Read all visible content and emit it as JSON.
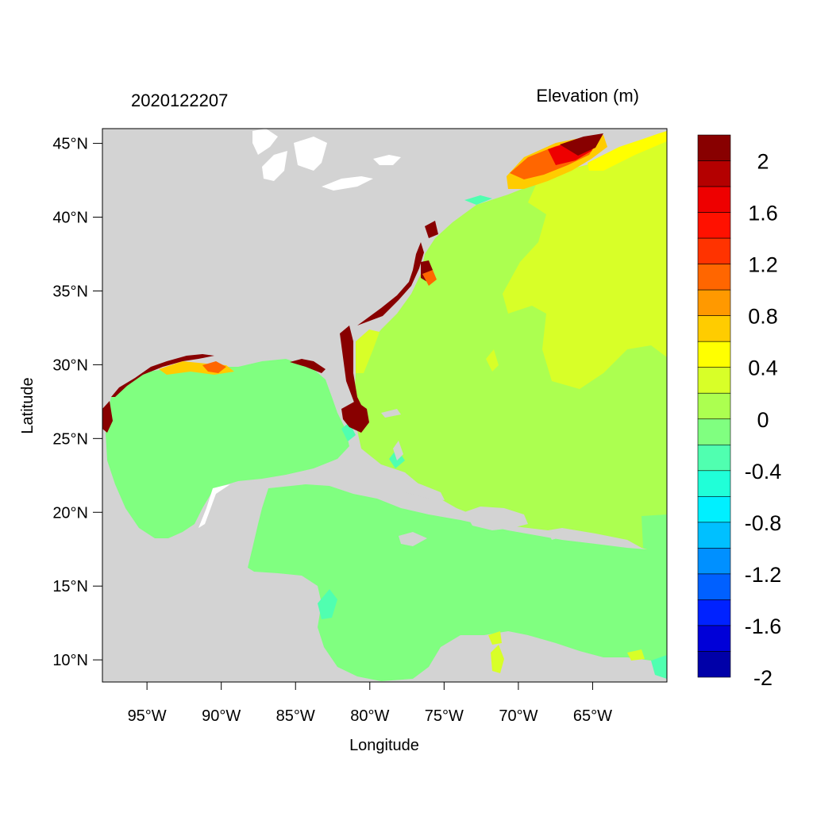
{
  "plot": {
    "left_title": "2020122207",
    "right_title": "Elevation (m)",
    "xlabel": "Longitude",
    "ylabel": "Latitude"
  },
  "axes": {
    "lon_range": [
      -98,
      -60
    ],
    "lat_range": [
      8.5,
      46
    ],
    "x_ticks": [
      {
        "value": -95,
        "label": "95°W"
      },
      {
        "value": -90,
        "label": "90°W"
      },
      {
        "value": -85,
        "label": "85°W"
      },
      {
        "value": -80,
        "label": "80°W"
      },
      {
        "value": -75,
        "label": "75°W"
      },
      {
        "value": -70,
        "label": "70°W"
      },
      {
        "value": -65,
        "label": "65°W"
      }
    ],
    "y_ticks": [
      {
        "value": 45,
        "label": "45°N"
      },
      {
        "value": 40,
        "label": "40°N"
      },
      {
        "value": 35,
        "label": "35°N"
      },
      {
        "value": 30,
        "label": "30°N"
      },
      {
        "value": 25,
        "label": "25°N"
      },
      {
        "value": 20,
        "label": "20°N"
      },
      {
        "value": 15,
        "label": "15°N"
      },
      {
        "value": 10,
        "label": "10°N"
      }
    ]
  },
  "colorbar": {
    "colors": [
      "#0000a8",
      "#0000d8",
      "#0022ff",
      "#0060ff",
      "#0090ff",
      "#00c0ff",
      "#00f0ff",
      "#20ffd8",
      "#50ffb0",
      "#80ff80",
      "#acff50",
      "#d8ff28",
      "#ffff00",
      "#ffcc00",
      "#ff9900",
      "#ff6600",
      "#ff3300",
      "#ff1100",
      "#ee0000",
      "#b40000",
      "#880000"
    ],
    "labels": [
      "2",
      "1.6",
      "1.2",
      "0.8",
      "0.4",
      "0",
      "-0.4",
      "-0.8",
      "-1.2",
      "-1.6",
      "-2"
    ]
  },
  "colors": {
    "land": "#d3d3d3",
    "lake": "#ffffff"
  }
}
